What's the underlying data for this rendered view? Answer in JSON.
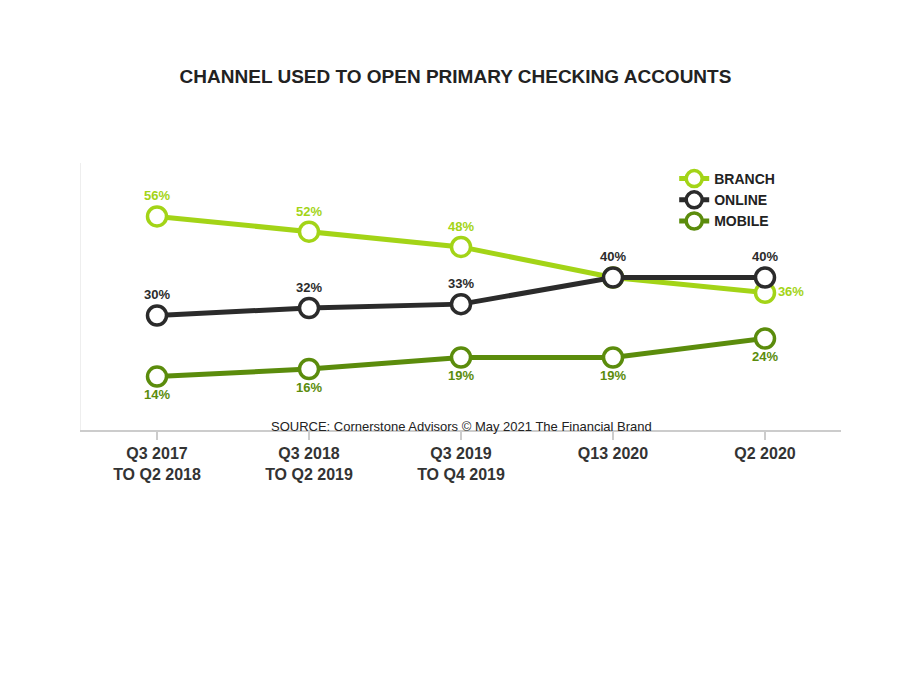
{
  "chart_data": {
    "type": "line",
    "title": "CHANNEL USED TO OPEN PRIMARY CHECKING ACCOUNTS",
    "subtitle": "SOURCE: Cornerstone Advisors © May 2021 The Financial Brand",
    "categories": [
      "Q3 2017\nTO Q2 2018",
      "Q3 2018\nTO Q2 2019",
      "Q3 2019\nTO Q4 2019",
      "Q13 2020",
      "Q2 2020"
    ],
    "series": [
      {
        "name": "BRANCH",
        "color": "#a3d417",
        "values": [
          56,
          52,
          48,
          40,
          36
        ],
        "value_labels": [
          "56%",
          "52%",
          "48%",
          null,
          "36%"
        ]
      },
      {
        "name": "ONLINE",
        "color": "#2b2b2b",
        "values": [
          30,
          32,
          33,
          40,
          40
        ],
        "value_labels": [
          "30%",
          "32%",
          "33%",
          "40%",
          "40%"
        ]
      },
      {
        "name": "MOBILE",
        "color": "#5b8c0c",
        "values": [
          14,
          16,
          19,
          19,
          24
        ],
        "value_labels": [
          "14%",
          "16%",
          "19%",
          "19%",
          "24%"
        ]
      }
    ],
    "ylim": [
      0,
      70
    ],
    "grid": false,
    "legend": "upper right",
    "data_labels": true,
    "tick_labels": "x",
    "marker": "open circle",
    "line_style": "solid"
  }
}
